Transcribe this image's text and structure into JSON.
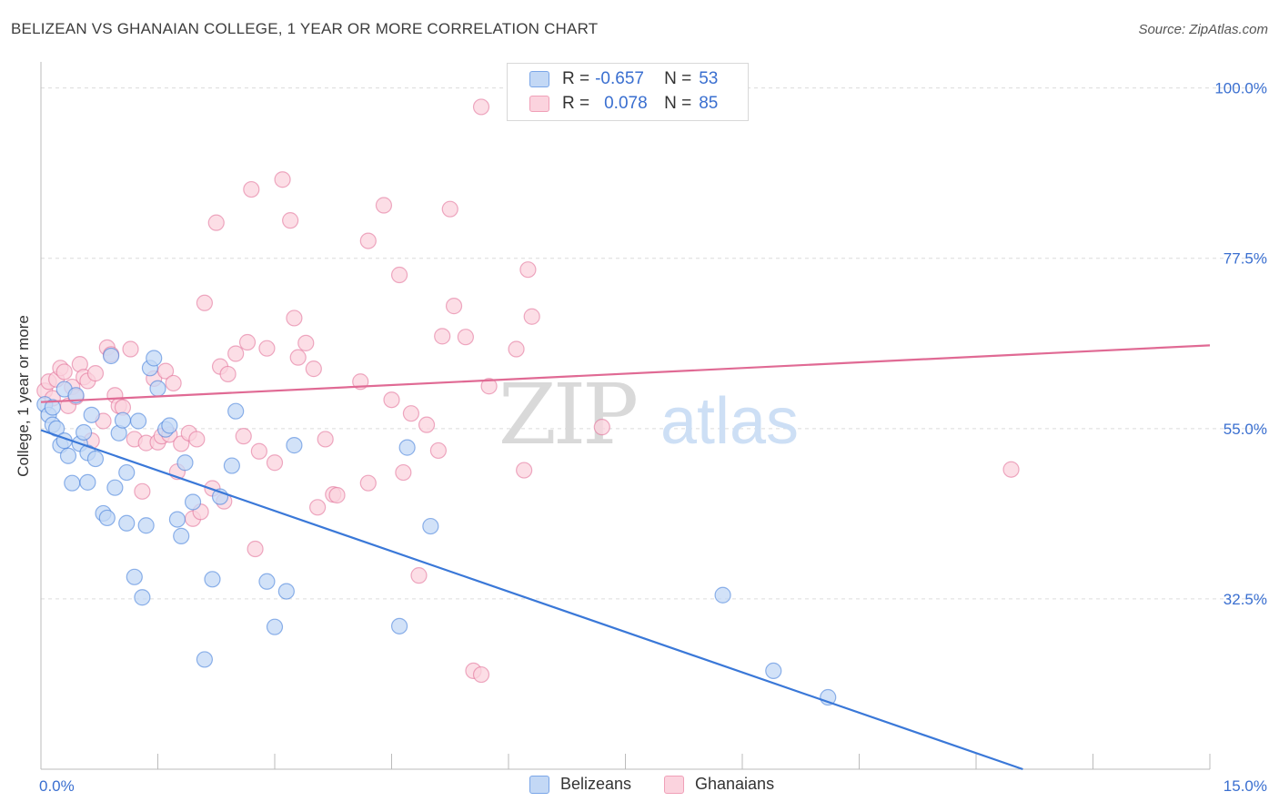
{
  "title": "BELIZEAN VS GHANAIAN COLLEGE, 1 YEAR OR MORE CORRELATION CHART",
  "source": "Source: ZipAtlas.com",
  "watermark": {
    "zip": "ZIP",
    "atlas": "atlas"
  },
  "legend": {
    "rows": [
      {
        "r_label": "R =",
        "r_value": "-0.657",
        "n_label": "N =",
        "n_value": "53",
        "color": "#7aa6e8",
        "fill": "#c3d8f5"
      },
      {
        "r_label": "R =",
        "r_value": "0.078",
        "n_label": "N =",
        "n_value": "85",
        "color": "#f0a0b8",
        "fill": "#fbd3de"
      }
    ]
  },
  "bottom_legend": [
    "Belizeans",
    "Ghanaians"
  ],
  "chart_data": {
    "type": "scatter",
    "title": "BELIZEAN VS GHANAIAN COLLEGE, 1 YEAR OR MORE CORRELATION CHART",
    "xlabel": "",
    "ylabel": "College, 1 year or more",
    "xlim": [
      0,
      15
    ],
    "ylim": [
      10,
      102
    ],
    "x_tick_labels": [
      "0.0%",
      "15.0%"
    ],
    "y_ticks": [
      32.5,
      55.0,
      77.5,
      100.0
    ],
    "y_tick_labels": [
      "32.5%",
      "55.0%",
      "77.5%",
      "100.0%"
    ],
    "grid": true,
    "legend_position": "top-center",
    "series": [
      {
        "name": "Belizeans",
        "color": "#3a78d8",
        "point_fill": "#c3d8f5",
        "trend": {
          "x": [
            0.0,
            12.6
          ],
          "y": [
            54.8,
            10.0
          ]
        },
        "points": [
          [
            0.05,
            58.2
          ],
          [
            0.1,
            56.8
          ],
          [
            0.15,
            55.5
          ],
          [
            0.2,
            55.0
          ],
          [
            0.25,
            52.8
          ],
          [
            0.3,
            60.2
          ],
          [
            0.35,
            51.4
          ],
          [
            0.4,
            47.8
          ],
          [
            0.45,
            59.4
          ],
          [
            0.5,
            53.0
          ],
          [
            0.55,
            54.5
          ],
          [
            0.6,
            51.8
          ],
          [
            0.65,
            56.8
          ],
          [
            0.7,
            51.0
          ],
          [
            0.8,
            43.8
          ],
          [
            0.85,
            43.2
          ],
          [
            0.9,
            64.6
          ],
          [
            0.95,
            47.2
          ],
          [
            1.0,
            54.4
          ],
          [
            1.05,
            56.1
          ],
          [
            1.1,
            49.2
          ],
          [
            1.2,
            35.4
          ],
          [
            1.25,
            56.0
          ],
          [
            1.3,
            32.7
          ],
          [
            1.35,
            42.2
          ],
          [
            1.4,
            63.0
          ],
          [
            1.45,
            64.3
          ],
          [
            1.5,
            60.3
          ],
          [
            1.6,
            54.9
          ],
          [
            1.65,
            55.4
          ],
          [
            1.75,
            43.0
          ],
          [
            1.8,
            40.8
          ],
          [
            1.85,
            50.5
          ],
          [
            1.95,
            45.3
          ],
          [
            2.1,
            24.5
          ],
          [
            2.2,
            35.1
          ],
          [
            2.3,
            46.0
          ],
          [
            2.45,
            50.1
          ],
          [
            2.5,
            57.3
          ],
          [
            2.9,
            34.8
          ],
          [
            3.0,
            28.8
          ],
          [
            3.15,
            33.5
          ],
          [
            3.25,
            52.8
          ],
          [
            4.6,
            28.9
          ],
          [
            4.7,
            52.5
          ],
          [
            5.0,
            42.1
          ],
          [
            8.75,
            33.0
          ],
          [
            9.4,
            23.0
          ],
          [
            10.1,
            19.5
          ],
          [
            0.15,
            57.8
          ],
          [
            0.3,
            53.4
          ],
          [
            0.6,
            47.9
          ],
          [
            1.1,
            42.5
          ]
        ]
      },
      {
        "name": "Ghanaians",
        "color": "#e06a94",
        "point_fill": "#fbd3de",
        "trend": {
          "x": [
            0.0,
            15.0
          ],
          "y": [
            58.5,
            66.0
          ]
        },
        "points": [
          [
            0.05,
            60.0
          ],
          [
            0.1,
            61.2
          ],
          [
            0.15,
            59.0
          ],
          [
            0.2,
            61.5
          ],
          [
            0.25,
            63.0
          ],
          [
            0.3,
            62.5
          ],
          [
            0.35,
            58.0
          ],
          [
            0.4,
            60.5
          ],
          [
            0.45,
            59.2
          ],
          [
            0.5,
            63.5
          ],
          [
            0.55,
            61.8
          ],
          [
            0.6,
            61.3
          ],
          [
            0.65,
            53.4
          ],
          [
            0.7,
            62.3
          ],
          [
            0.8,
            56.0
          ],
          [
            0.85,
            65.7
          ],
          [
            0.9,
            64.8
          ],
          [
            0.95,
            59.4
          ],
          [
            1.0,
            58.0
          ],
          [
            1.05,
            57.8
          ],
          [
            1.15,
            65.5
          ],
          [
            1.2,
            53.6
          ],
          [
            1.3,
            46.7
          ],
          [
            1.35,
            53.1
          ],
          [
            1.45,
            61.6
          ],
          [
            1.5,
            53.2
          ],
          [
            1.55,
            54.0
          ],
          [
            1.6,
            62.6
          ],
          [
            1.65,
            54.2
          ],
          [
            1.7,
            61.0
          ],
          [
            1.75,
            49.3
          ],
          [
            1.8,
            53.0
          ],
          [
            1.9,
            54.4
          ],
          [
            1.95,
            43.1
          ],
          [
            2.0,
            53.6
          ],
          [
            2.05,
            44.0
          ],
          [
            2.1,
            71.6
          ],
          [
            2.2,
            47.1
          ],
          [
            2.25,
            82.2
          ],
          [
            2.3,
            63.2
          ],
          [
            2.35,
            45.4
          ],
          [
            2.4,
            62.2
          ],
          [
            2.5,
            64.9
          ],
          [
            2.6,
            54.0
          ],
          [
            2.65,
            66.4
          ],
          [
            2.7,
            86.6
          ],
          [
            2.75,
            39.1
          ],
          [
            2.8,
            52.0
          ],
          [
            2.9,
            65.6
          ],
          [
            3.0,
            50.5
          ],
          [
            3.1,
            87.9
          ],
          [
            3.2,
            82.5
          ],
          [
            3.25,
            69.6
          ],
          [
            3.3,
            64.4
          ],
          [
            3.4,
            66.3
          ],
          [
            3.5,
            62.9
          ],
          [
            3.55,
            44.6
          ],
          [
            3.65,
            53.6
          ],
          [
            3.75,
            46.3
          ],
          [
            3.8,
            46.2
          ],
          [
            4.1,
            61.2
          ],
          [
            4.2,
            47.8
          ],
          [
            4.2,
            79.8
          ],
          [
            4.4,
            84.5
          ],
          [
            4.5,
            58.8
          ],
          [
            4.6,
            75.3
          ],
          [
            4.65,
            49.2
          ],
          [
            4.75,
            57.0
          ],
          [
            4.85,
            35.6
          ],
          [
            4.95,
            55.5
          ],
          [
            5.1,
            52.1
          ],
          [
            5.15,
            67.2
          ],
          [
            5.25,
            84.0
          ],
          [
            5.3,
            71.2
          ],
          [
            5.45,
            67.1
          ],
          [
            5.55,
            23.0
          ],
          [
            5.65,
            22.5
          ],
          [
            5.75,
            60.6
          ],
          [
            5.65,
            97.5
          ],
          [
            6.1,
            65.5
          ],
          [
            6.2,
            49.5
          ],
          [
            6.25,
            76.0
          ],
          [
            6.3,
            69.8
          ],
          [
            7.2,
            55.2
          ],
          [
            12.45,
            49.6
          ]
        ]
      }
    ]
  }
}
